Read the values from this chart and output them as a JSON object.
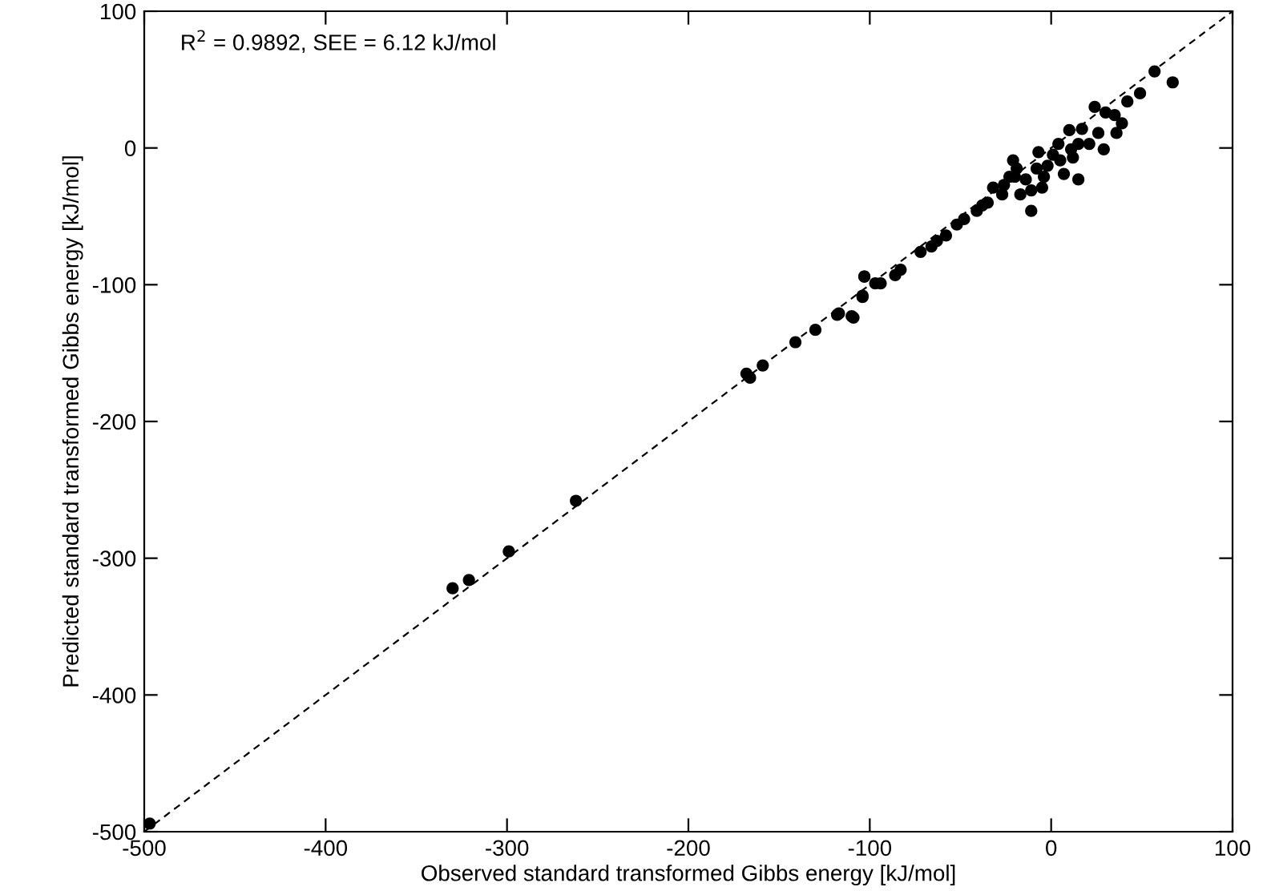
{
  "chart_data": {
    "type": "scatter",
    "xlabel": "Observed standard transformed Gibbs energy [kJ/mol]",
    "ylabel": "Predicted standard transformed Gibbs energy [kJ/mol]",
    "annotations": [
      "R$^{2}$ = 0.9892, SEE = 6.12 kJ/mol"
    ],
    "xlim": [
      -500,
      100
    ],
    "ylim": [
      -500,
      100
    ],
    "xticks": [
      -500,
      -400,
      -300,
      -200,
      -100,
      0,
      100
    ],
    "yticks": [
      -500,
      -400,
      -300,
      -200,
      -100,
      0,
      100
    ],
    "grid": false,
    "legend": false,
    "series": [
      {
        "color": "#000000",
        "marker": "circle",
        "x": [
          -497,
          -330,
          -321,
          -299,
          -262,
          -168,
          -166,
          -159,
          -141,
          -130,
          -118,
          -109,
          -103,
          -104,
          -117,
          -110,
          -104,
          -103,
          -97,
          -94,
          -86,
          -83,
          -72,
          -66,
          -63,
          -58,
          -52,
          -48,
          -41,
          -38,
          -35,
          -32,
          -27,
          -26,
          -23,
          -20,
          -21,
          -19,
          -17,
          -14,
          -11,
          -11,
          -8,
          -7,
          -5,
          -4,
          -2,
          1,
          4,
          5,
          7,
          10,
          11,
          12,
          15,
          15,
          17,
          21,
          24,
          26,
          29,
          30,
          35,
          36,
          39,
          42,
          49,
          57,
          67
        ],
        "values": [
          -494,
          -322,
          -316,
          -295,
          -258,
          -165,
          -168,
          -159,
          -142,
          -133,
          -122,
          -124,
          -94,
          -108,
          -121,
          -123,
          -109,
          -94,
          -99,
          -99,
          -93,
          -89,
          -76,
          -72,
          -68,
          -64,
          -56,
          -52,
          -46,
          -42,
          -40,
          -29,
          -34,
          -27,
          -21,
          -21,
          -9,
          -15,
          -34,
          -23,
          -46,
          -31,
          -15,
          -3,
          -29,
          -21,
          -13,
          -5,
          3,
          -9,
          -19,
          13,
          -1,
          -7,
          3,
          -23,
          14,
          3,
          30,
          11,
          -1,
          26,
          24,
          11,
          18,
          34,
          40,
          56,
          48
        ]
      },
      {
        "type": "line",
        "color": "#000000",
        "line_style": "dashed",
        "marker": "none",
        "x": [
          -500,
          100
        ],
        "values": [
          -500,
          100
        ]
      }
    ]
  }
}
